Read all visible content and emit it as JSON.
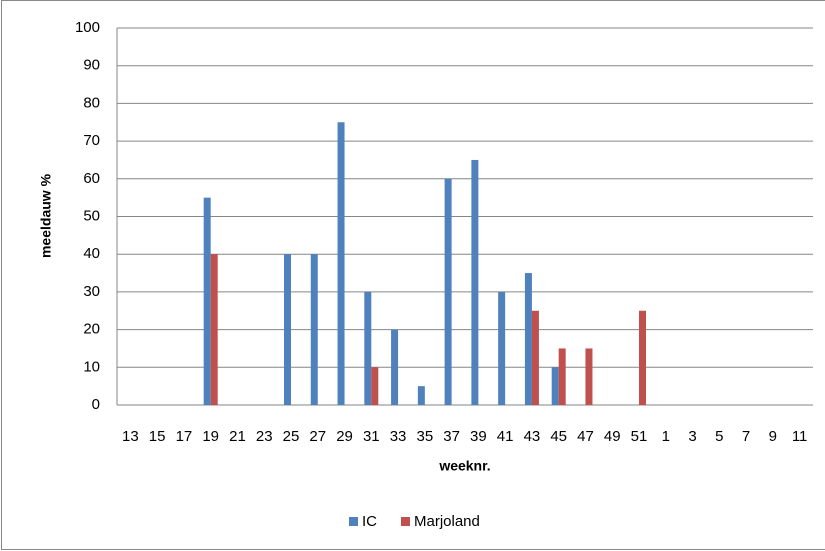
{
  "chart_data": {
    "type": "bar",
    "y_label": "meeldauw %",
    "x_label": "weeknr.",
    "categories": [
      "13",
      "15",
      "17",
      "19",
      "21",
      "23",
      "25",
      "27",
      "29",
      "31",
      "33",
      "35",
      "37",
      "39",
      "41",
      "43",
      "45",
      "47",
      "49",
      "51",
      "1",
      "3",
      "5",
      "7",
      "9",
      "11"
    ],
    "series": [
      {
        "name": "IC",
        "color": "#4f81bd",
        "values": [
          null,
          null,
          null,
          55,
          null,
          null,
          40,
          40,
          75,
          30,
          20,
          5,
          60,
          65,
          30,
          35,
          10,
          null,
          null,
          null,
          null,
          null,
          null,
          null,
          null,
          null
        ]
      },
      {
        "name": "Marjoland",
        "color": "#c0504d",
        "values": [
          null,
          null,
          null,
          40,
          null,
          null,
          null,
          null,
          null,
          10,
          null,
          null,
          null,
          null,
          null,
          25,
          15,
          15,
          null,
          25,
          null,
          null,
          null,
          null,
          null,
          null
        ]
      }
    ],
    "ylim": [
      0,
      100
    ],
    "yticks": [
      0,
      10,
      20,
      30,
      40,
      50,
      60,
      70,
      80,
      90,
      100
    ],
    "grid": true,
    "legend": "bottom"
  }
}
